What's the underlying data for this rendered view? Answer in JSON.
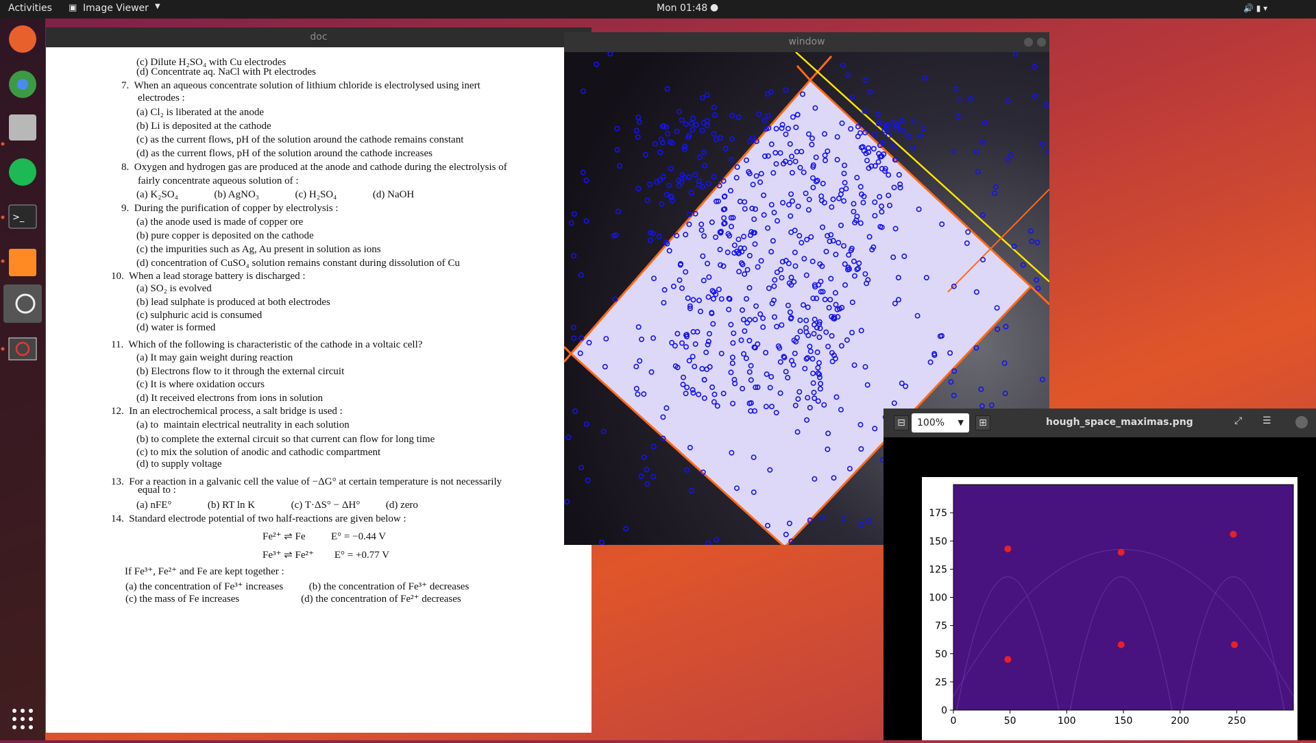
{
  "topbar": {
    "activities": "Activities",
    "app": "Image Viewer",
    "clock": "Mon 01:48"
  },
  "doc": {
    "title": "doc",
    "lines": [
      "(c) Dilute H₂SO₄ with Cu electrodes",
      "(d) Concentrate aq. NaCl with Pt electrodes",
      "7.  When an aqueous concentrate solution of lithium chloride is electrolysed using inert",
      "electrodes :",
      "(a) Cl₂ is liberated at the anode",
      "(b) Li is deposited at the cathode",
      "(c) as the current flows, pH of the solution around the cathode remains constant",
      "(d) as the current flows, pH of the solution around the cathode increases",
      "8.  Oxygen and hydrogen gas are produced at the anode and cathode during the electrolysis of",
      "fairly concentrate aqueous solution of :",
      "(a) K₂SO₄              (b) AgNO₃              (c) H₂SO₄              (d) NaOH",
      "9.  During the purification of copper by electrolysis :",
      "(a) the anode used is made of copper ore",
      "(b) pure copper is deposited on the cathode",
      "(c) the impurities such as Ag, Au present in solution as ions",
      "(d) concentration of CuSO₄ solution remains constant during dissolution of Cu",
      "10.  When a lead storage battery is discharged :",
      "(a) SO₂ is evolved",
      "(b) lead sulphate is produced at both electrodes",
      "(c) sulphuric acid is consumed",
      "(d) water is formed",
      "11.  Which of the following is characteristic of the cathode in a voltaic cell?",
      "(a) It may gain weight during reaction",
      "(b) Electrons flow to it through the external circuit",
      "(c) It is where oxidation occurs",
      "(d) It received electrons from ions in solution",
      "12.  In an electrochemical process, a salt bridge is used :",
      "(a) to  maintain electrical neutrality in each solution",
      "(b) to complete the external circuit so that current can flow for long time",
      "(c) to mix the solution of anodic and cathodic compartment",
      "(d) to supply voltage",
      "13.  For a reaction in a galvanic cell the value of −ΔG° at certain temperature is not necessarily",
      "equal to :",
      "(a) nFE°              (b) RT ln K              (c) T·ΔS° − ΔH°          (d) zero",
      "14.  Standard electrode potential of two half-reactions are given below :",
      "Fe²⁺ ⇌ Fe          E° = −0.44 V",
      "Fe³⁺ ⇌ Fe²⁺        E° = +0.77 V",
      "If Fe³⁺, Fe²⁺ and Fe are kept together :",
      "(a) the concentration of Fe³⁺ increases          (b) the concentration of Fe³⁺ decreases",
      "(c) the mass of Fe increases                        (d) the concentration of Fe²⁺ decreases"
    ]
  },
  "cv_window": {
    "title": "window"
  },
  "image_viewer": {
    "zoom": "100%",
    "title": "hough_space_maximas.png",
    "plot": {
      "type": "scatter",
      "xlim": [
        0,
        300
      ],
      "ylim": [
        0,
        200
      ],
      "xticks": [
        0,
        50,
        100,
        150,
        200,
        250
      ],
      "yticks": [
        0,
        25,
        50,
        75,
        100,
        125,
        150,
        175
      ],
      "x": [
        48,
        148,
        247,
        48,
        148,
        248
      ],
      "y": [
        143,
        140,
        156,
        45,
        58,
        58
      ],
      "color": "#e8202a",
      "background": "#48137e"
    }
  }
}
